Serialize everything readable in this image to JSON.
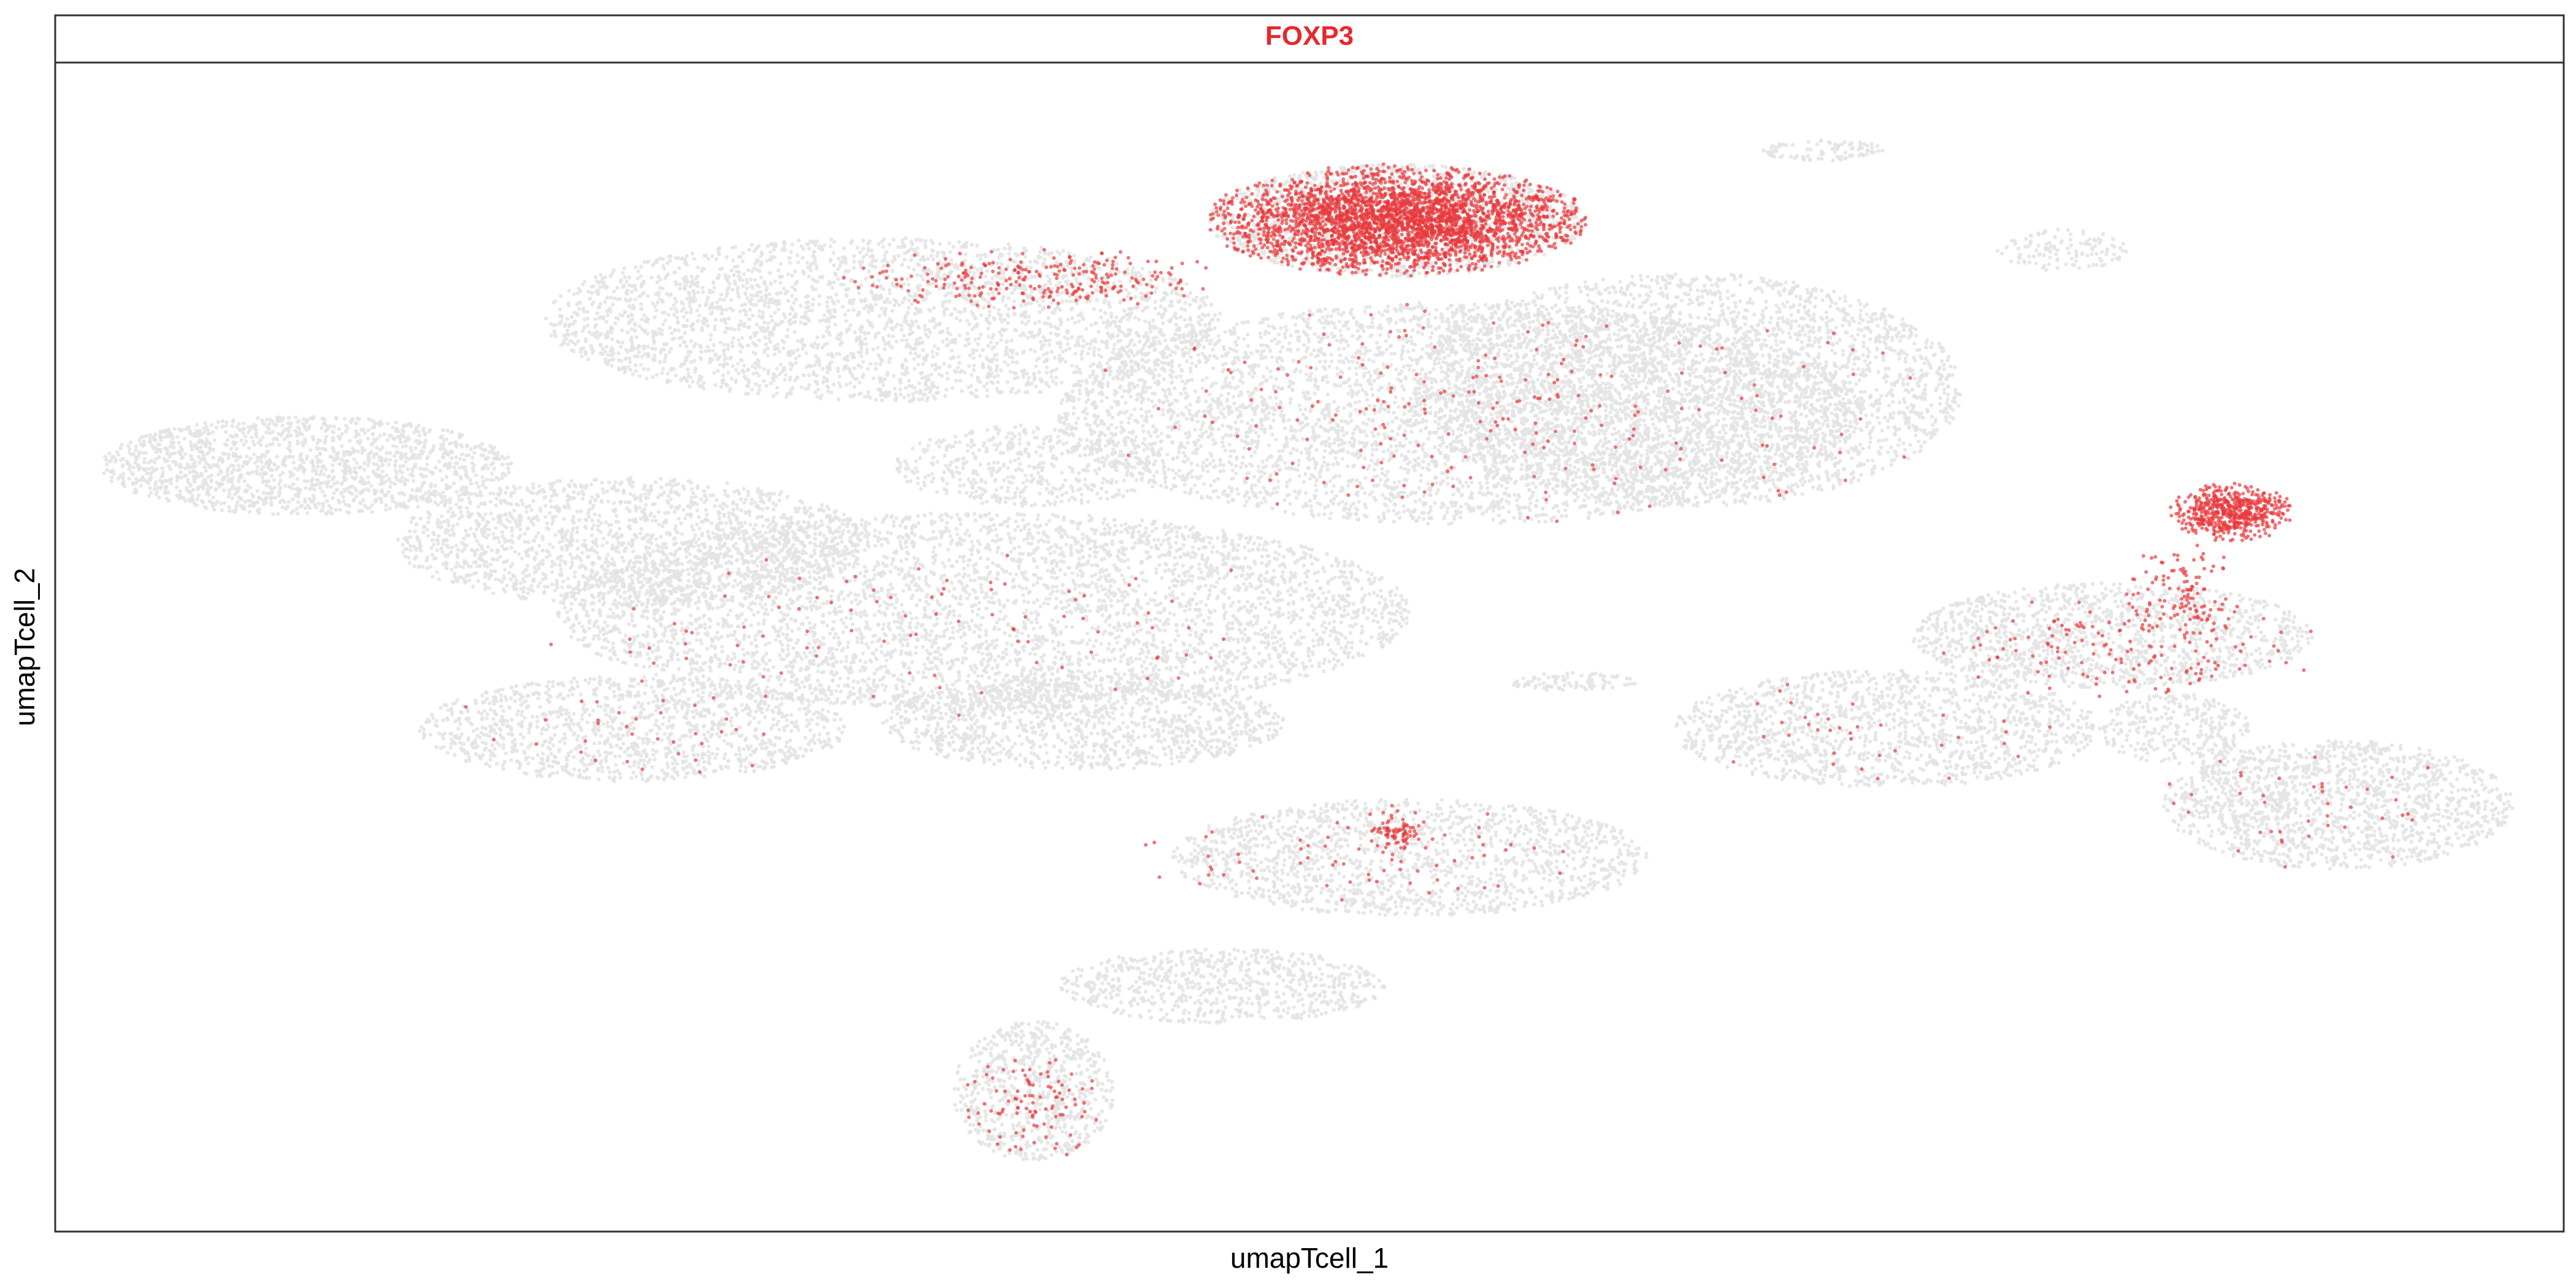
{
  "chart_data": {
    "type": "scatter",
    "title": "FOXP3",
    "xlabel": "umapTcell_1",
    "ylabel": "umapTcell_2",
    "xlim": [
      0,
      100
    ],
    "ylim": [
      0,
      100
    ],
    "grid": false,
    "axes_ticks": false,
    "legend": "none",
    "colors": {
      "background_cells": "#e3e3e3",
      "expressing_cells": "#e8393c",
      "title": "#e8282b",
      "strip_fill": "#ffffff",
      "frame": "#333333"
    },
    "series": [
      {
        "color": "#e3e3e3",
        "regions": [
          {
            "cx": 10.0,
            "cy": 65.5,
            "rx": 8.2,
            "ry": 4.2,
            "n": 1500
          },
          {
            "cx": 23.0,
            "cy": 59.0,
            "rx": 9.5,
            "ry": 5.5,
            "n": 1700
          },
          {
            "cx": 37.0,
            "cy": 53.0,
            "rx": 17.0,
            "ry": 8.5,
            "n": 4300
          },
          {
            "cx": 33.0,
            "cy": 78.0,
            "rx": 13.5,
            "ry": 7.0,
            "n": 2800
          },
          {
            "cx": 39.0,
            "cy": 65.5,
            "rx": 5.5,
            "ry": 3.5,
            "n": 500
          },
          {
            "cx": 56.0,
            "cy": 70.0,
            "rx": 16.0,
            "ry": 9.5,
            "n": 4500
          },
          {
            "cx": 65.0,
            "cy": 72.0,
            "rx": 11.0,
            "ry": 10.0,
            "n": 3200
          },
          {
            "cx": 23.0,
            "cy": 43.0,
            "rx": 8.5,
            "ry": 4.5,
            "n": 1300
          },
          {
            "cx": 41.0,
            "cy": 43.5,
            "rx": 8.0,
            "ry": 4.0,
            "n": 1200
          },
          {
            "cx": 54.0,
            "cy": 32.0,
            "rx": 9.5,
            "ry": 5.0,
            "n": 1500
          },
          {
            "cx": 46.5,
            "cy": 21.0,
            "rx": 6.5,
            "ry": 3.2,
            "n": 700
          },
          {
            "cx": 39.0,
            "cy": 12.0,
            "rx": 3.2,
            "ry": 6.0,
            "n": 700
          },
          {
            "cx": 73.0,
            "cy": 43.0,
            "rx": 8.5,
            "ry": 5.0,
            "n": 1400
          },
          {
            "cx": 82.0,
            "cy": 51.0,
            "rx": 8.0,
            "ry": 4.5,
            "n": 1300
          },
          {
            "cx": 91.0,
            "cy": 36.5,
            "rx": 7.0,
            "ry": 5.5,
            "n": 1500
          },
          {
            "cx": 84.5,
            "cy": 43.0,
            "rx": 3.0,
            "ry": 3.0,
            "n": 300
          },
          {
            "cx": 53.5,
            "cy": 86.5,
            "rx": 7.5,
            "ry": 4.8,
            "n": 1500
          },
          {
            "cx": 80.0,
            "cy": 84.0,
            "rx": 2.6,
            "ry": 1.8,
            "n": 120
          },
          {
            "cx": 70.5,
            "cy": 92.5,
            "rx": 2.5,
            "ry": 0.9,
            "n": 90
          },
          {
            "cx": 60.5,
            "cy": 47.0,
            "rx": 2.6,
            "ry": 0.8,
            "n": 90
          }
        ]
      },
      {
        "color": "#e8393c",
        "regions": [
          {
            "cx": 53.5,
            "cy": 86.5,
            "rx": 7.3,
            "ry": 4.6,
            "n": 3200
          },
          {
            "cx": 86.8,
            "cy": 61.5,
            "rx": 2.4,
            "ry": 2.4,
            "n": 550
          },
          {
            "cx": 84.8,
            "cy": 54.5,
            "rx": 2.2,
            "ry": 4.5,
            "n": 110
          },
          {
            "cx": 53.5,
            "cy": 34.0,
            "rx": 1.0,
            "ry": 1.6,
            "n": 70
          },
          {
            "cx": 39.0,
            "cy": 81.5,
            "rx": 7.5,
            "ry": 2.5,
            "n": 260
          },
          {
            "cx": 39.0,
            "cy": 11.0,
            "rx": 2.8,
            "ry": 5.0,
            "n": 100
          },
          {
            "cx": 82.5,
            "cy": 50.0,
            "rx": 7.5,
            "ry": 4.5,
            "n": 160
          },
          {
            "cx": 90.0,
            "cy": 36.0,
            "rx": 6.5,
            "ry": 5.0,
            "n": 40
          },
          {
            "cx": 58.0,
            "cy": 70.0,
            "rx": 17.0,
            "ry": 9.5,
            "n": 220
          },
          {
            "cx": 35.0,
            "cy": 52.0,
            "rx": 17.0,
            "ry": 8.0,
            "n": 90
          },
          {
            "cx": 23.0,
            "cy": 43.0,
            "rx": 8.0,
            "ry": 4.0,
            "n": 35
          },
          {
            "cx": 52.0,
            "cy": 32.0,
            "rx": 9.0,
            "ry": 4.5,
            "n": 75
          },
          {
            "cx": 73.0,
            "cy": 43.0,
            "rx": 8.0,
            "ry": 4.5,
            "n": 35
          }
        ]
      }
    ]
  }
}
